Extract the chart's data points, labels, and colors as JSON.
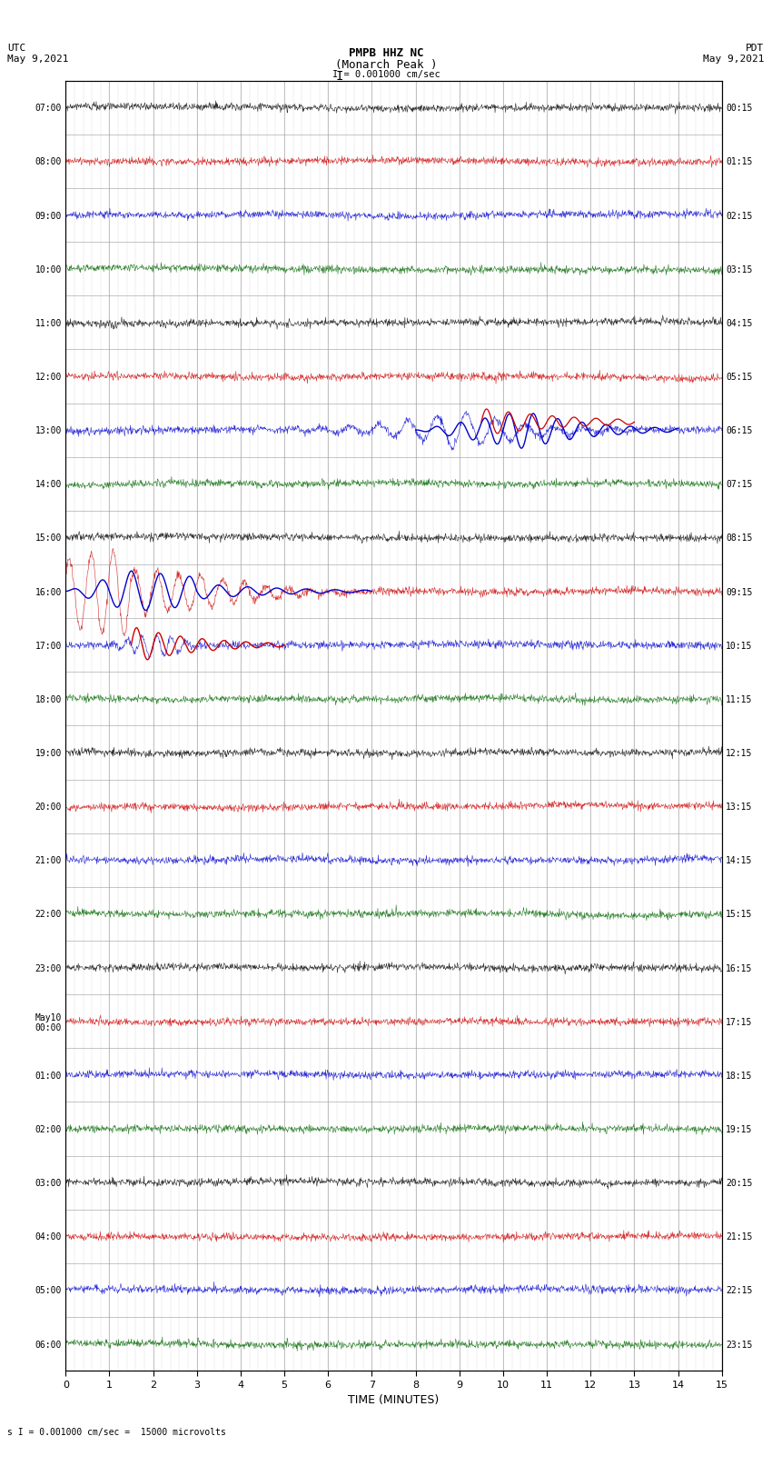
{
  "title_line1": "PMPB HHZ NC",
  "title_line2": "(Monarch Peak )",
  "title_line3": "I = 0.001000 cm/sec",
  "left_header": "UTC\nMay 9,2021",
  "right_header": "PDT\nMay 9,2021",
  "xlabel": "TIME (MINUTES)",
  "footer": "s I = 0.001000 cm/sec =  15000 microvolts",
  "utc_labels": [
    "07:00",
    "08:00",
    "09:00",
    "10:00",
    "11:00",
    "12:00",
    "13:00",
    "14:00",
    "15:00",
    "16:00",
    "17:00",
    "18:00",
    "19:00",
    "20:00",
    "21:00",
    "22:00",
    "23:00",
    "May10\n00:00",
    "01:00",
    "02:00",
    "03:00",
    "04:00",
    "05:00",
    "06:00"
  ],
  "pdt_labels": [
    "00:15",
    "01:15",
    "02:15",
    "03:15",
    "04:15",
    "05:15",
    "06:15",
    "07:15",
    "08:15",
    "09:15",
    "10:15",
    "11:15",
    "12:15",
    "13:15",
    "14:15",
    "15:15",
    "16:15",
    "17:15",
    "18:15",
    "19:15",
    "20:15",
    "21:15",
    "22:15",
    "23:15"
  ],
  "num_rows": 24,
  "minutes_per_row": 15,
  "bg_color": "#ffffff",
  "grid_color": "#999999",
  "trace_color_black": "#000000",
  "trace_color_red": "#cc0000",
  "trace_color_blue": "#0000cc",
  "trace_color_green": "#006600"
}
